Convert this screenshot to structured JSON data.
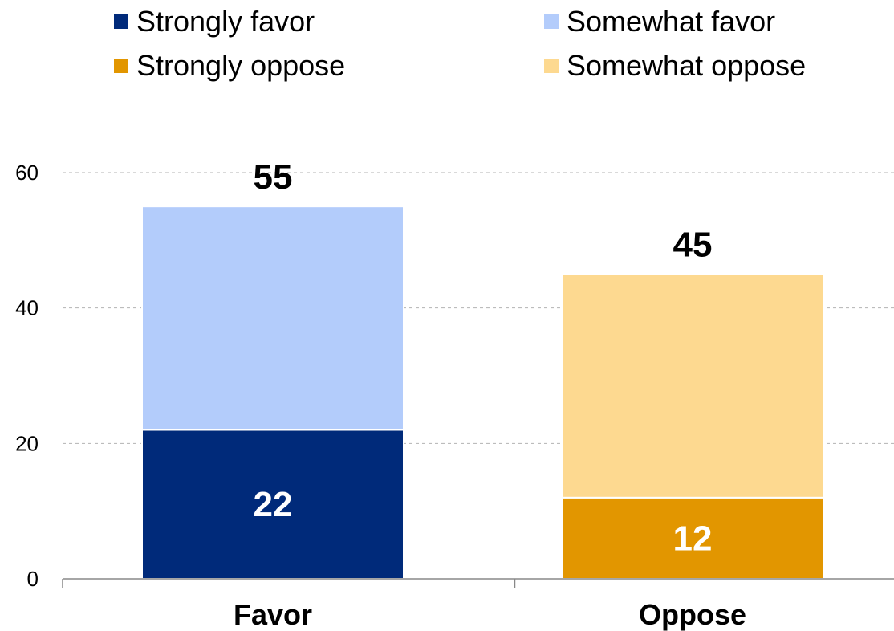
{
  "chart_data": {
    "type": "bar",
    "stacked": true,
    "categories": [
      "Favor",
      "Oppose"
    ],
    "series": [
      {
        "name": "Strongly favor",
        "color": "#002A7A",
        "values": [
          22,
          null
        ]
      },
      {
        "name": "Somewhat favor",
        "color": "#B3CCFB",
        "values": [
          33,
          null
        ]
      },
      {
        "name": "Strongly oppose",
        "color": "#E29600",
        "values": [
          null,
          12
        ]
      },
      {
        "name": "Somewhat oppose",
        "color": "#FDD990",
        "values": [
          null,
          33
        ]
      }
    ],
    "segment_labels": [
      {
        "category": "Favor",
        "series": "Strongly favor",
        "text": "22"
      },
      {
        "category": "Oppose",
        "series": "Strongly oppose",
        "text": "12"
      }
    ],
    "totals": [
      {
        "category": "Favor",
        "value": 55,
        "text": "55"
      },
      {
        "category": "Oppose",
        "value": 45,
        "text": "45"
      }
    ],
    "ylim": [
      0,
      60
    ],
    "yticks": [
      0,
      20,
      40,
      60
    ],
    "grid": true,
    "legend_position": "top",
    "title": "",
    "xlabel": "",
    "ylabel": ""
  }
}
